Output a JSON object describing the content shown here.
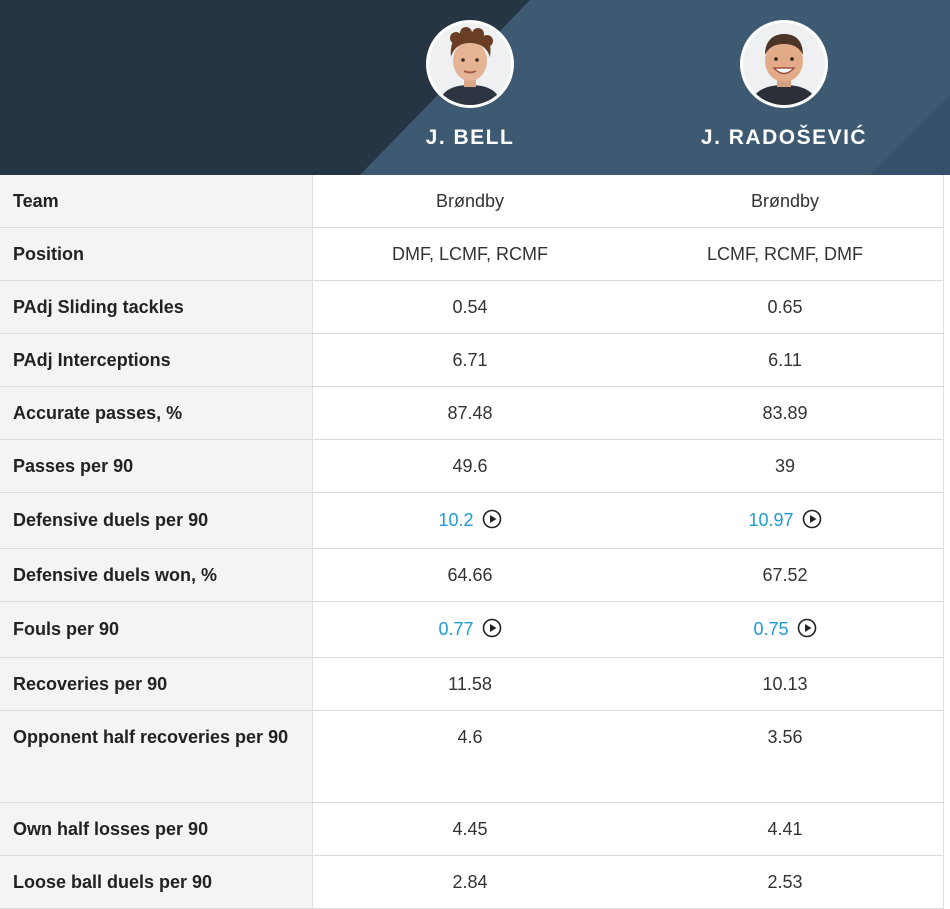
{
  "players": [
    {
      "name": "J. BELL",
      "avatar": "player-photo"
    },
    {
      "name": "J. RADOŠEVIĆ",
      "avatar": "player-photo"
    }
  ],
  "colors": {
    "header_dark": "#263544",
    "header_light": "#3e5a72",
    "link": "#1f9ad6"
  },
  "rows": [
    {
      "label": "Team",
      "v1": "Brøndby",
      "v2": "Brøndby"
    },
    {
      "label": "Position",
      "v1": "DMF, LCMF, RCMF",
      "v2": "LCMF, RCMF, DMF"
    },
    {
      "label": "PAdj Sliding tackles",
      "v1": "0.54",
      "v2": "0.65"
    },
    {
      "label": "PAdj Interceptions",
      "v1": "6.71",
      "v2": "6.11"
    },
    {
      "label": "Accurate passes, %",
      "v1": "87.48",
      "v2": "83.89"
    },
    {
      "label": "Passes per 90",
      "v1": "49.6",
      "v2": "39"
    },
    {
      "label": "Defensive duels per 90",
      "v1": "10.2",
      "v2": "10.97",
      "video": true
    },
    {
      "label": "Defensive duels won, %",
      "v1": "64.66",
      "v2": "67.52"
    },
    {
      "label": "Fouls per 90",
      "v1": "0.77",
      "v2": "0.75",
      "video": true
    },
    {
      "label": "Recoveries per 90",
      "v1": "11.58",
      "v2": "10.13"
    },
    {
      "label": "Opponent half recoveries per 90",
      "v1": "4.6",
      "v2": "3.56"
    },
    {
      "label": "Own half losses per 90",
      "v1": "4.45",
      "v2": "4.41"
    },
    {
      "label": "Loose ball duels per 90",
      "v1": "2.84",
      "v2": "2.53"
    }
  ]
}
